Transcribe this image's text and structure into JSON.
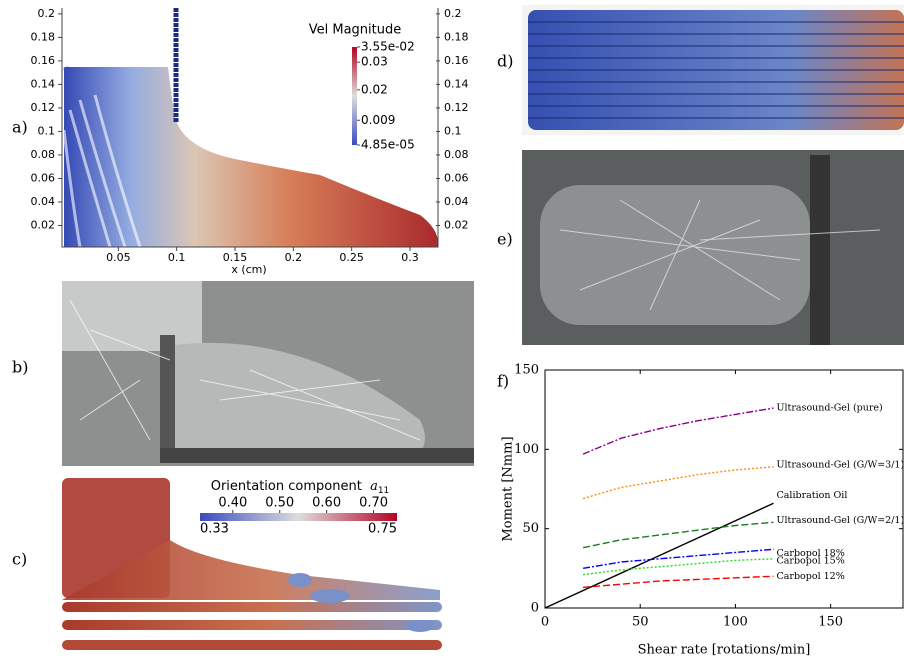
{
  "panel_labels": [
    "a)",
    "b)",
    "c)",
    "d)",
    "e)",
    "f)"
  ],
  "chart_data": [
    {
      "type": "field",
      "xlabel": "x (cm)",
      "xlim": [
        0,
        0.324
      ],
      "ylim": [
        0,
        0.205
      ],
      "xticks": [
        0.05,
        0.1,
        0.15,
        0.2,
        0.25,
        0.3
      ],
      "yticks": [
        0.02,
        0.04,
        0.06,
        0.08,
        0.1,
        0.12,
        0.14,
        0.16,
        0.18,
        0.2
      ],
      "colorbar": {
        "title": "Vel Magnitude",
        "clim": [
          4.85e-05,
          0.0355
        ],
        "ticks": [
          {
            "value": 0.0355,
            "label": "3.55e-02"
          },
          0.03,
          0.02,
          0.009,
          {
            "value": 4.85e-05,
            "label": "4.85e-05"
          }
        ]
      }
    },
    {
      "type": "colorbar",
      "title": "Orientation component",
      "symbol": "a",
      "subscript": "11",
      "clim": [
        0.33,
        0.75
      ],
      "ticks": [
        {
          "value": 0.4,
          "label": "0.40"
        },
        {
          "value": 0.5,
          "label": "0.50"
        },
        {
          "value": 0.6,
          "label": "0.60"
        },
        {
          "value": 0.7,
          "label": "0.70"
        }
      ],
      "end_labels": [
        0.33,
        0.75
      ]
    },
    {
      "type": "line",
      "xlabel": "Shear rate [rotations/min]",
      "ylabel": "Moment [Nmm]",
      "xlim": [
        0,
        188
      ],
      "ylim": [
        0,
        150
      ],
      "xticks": [
        0,
        50,
        100,
        150
      ],
      "yticks": [
        0,
        50,
        100,
        150
      ],
      "series": [
        {
          "name": "Ultrasound-Gel (pure)",
          "color": "#8b008b",
          "style": "dashdot",
          "x": [
            20,
            40,
            60,
            80,
            100,
            120
          ],
          "values": [
            97,
            107,
            113,
            118,
            122,
            126
          ]
        },
        {
          "name": "Ultrasound-Gel (G/W=3/1)",
          "color": "#ff8c00",
          "style": "dotted",
          "x": [
            20,
            40,
            60,
            80,
            100,
            120
          ],
          "values": [
            69,
            76,
            80,
            84,
            87,
            89
          ]
        },
        {
          "name": "Calibration Oil",
          "color": "#000000",
          "style": "solid",
          "x": [
            0,
            120
          ],
          "values": [
            0,
            66
          ]
        },
        {
          "name": "Ultrasound-Gel (G/W=2/1)",
          "color": "#1e7d1e",
          "style": "dashed",
          "x": [
            20,
            40,
            60,
            80,
            100,
            120
          ],
          "values": [
            38,
            43,
            46,
            49,
            52,
            54
          ]
        },
        {
          "name": "Carbopol 18%",
          "color": "#0000ff",
          "style": "dashdot",
          "x": [
            20,
            40,
            60,
            80,
            100,
            120
          ],
          "values": [
            25,
            29,
            31,
            33,
            35,
            37
          ]
        },
        {
          "name": "Carbopol 15%",
          "color": "#22dd22",
          "style": "dotted",
          "x": [
            20,
            40,
            60,
            80,
            100,
            120
          ],
          "values": [
            21,
            24,
            26,
            28,
            30,
            31
          ]
        },
        {
          "name": "Carbopol 12%",
          "color": "#ff0000",
          "style": "dashed",
          "x": [
            20,
            40,
            60,
            80,
            100,
            120
          ],
          "values": [
            13,
            15,
            17,
            18,
            19,
            20
          ]
        }
      ]
    }
  ]
}
